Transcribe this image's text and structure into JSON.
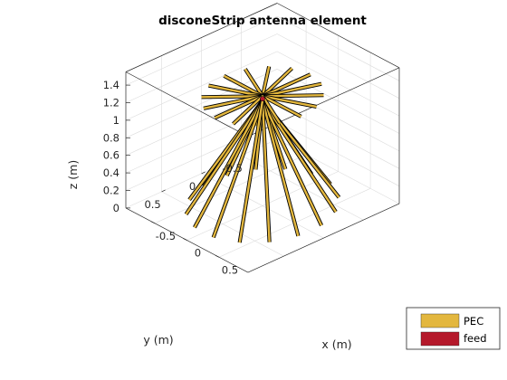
{
  "chart_data": {
    "type": "3d-surface",
    "title": "disconeStrip antenna element",
    "xlabel": "x (m)",
    "ylabel": "y (m)",
    "zlabel": "z (m)",
    "x_ticks": [
      -0.5,
      0,
      0.5
    ],
    "x_tick_labels": [
      "-0.5",
      "0",
      "0.5"
    ],
    "y_ticks": [
      -0.5,
      0,
      0.5
    ],
    "y_tick_labels": [
      "-0.5",
      "0",
      "0.5"
    ],
    "z_ticks": [
      0,
      0.2,
      0.4,
      0.6,
      0.8,
      1,
      1.2,
      1.4
    ],
    "z_tick_labels": [
      "0",
      "0.2",
      "0.4",
      "0.6",
      "0.8",
      "1",
      "1.2",
      "1.4"
    ],
    "xlim": [
      -0.95,
      0.95
    ],
    "ylim": [
      -0.95,
      0.95
    ],
    "zlim": [
      0,
      1.55
    ],
    "grid": true,
    "legend_position": "bottom-right",
    "series": [
      {
        "name": "PEC",
        "color": "#E3B73E"
      },
      {
        "name": "feed",
        "color": "#B5192B"
      }
    ],
    "geometry": {
      "feed_point": [
        0,
        0,
        1.22
      ],
      "cone_top_z": 1.2,
      "cone_bottom_z": 0.0,
      "cone_bottom_radius": 0.75,
      "cone_strip_count": 16,
      "disc_z": 1.25,
      "disc_radius": 0.6,
      "disc_strip_count": 16,
      "strip_width_m": 0.012
    }
  }
}
